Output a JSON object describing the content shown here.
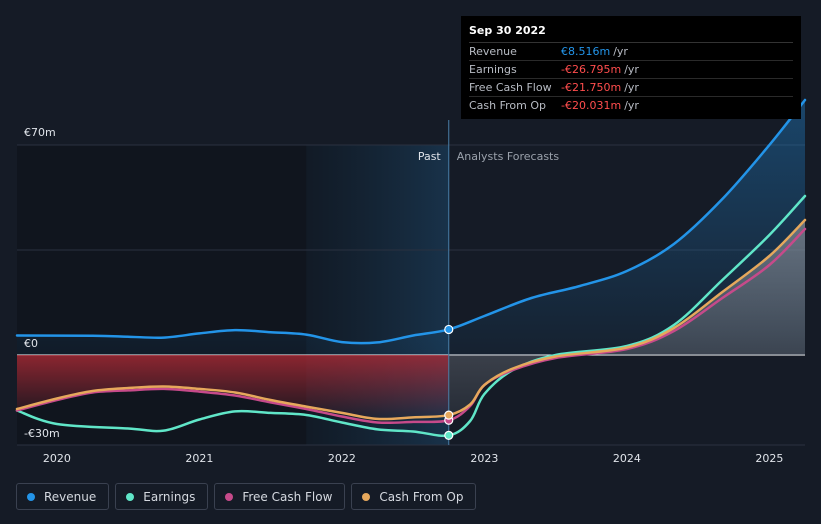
{
  "chart_data": {
    "type": "line",
    "currency_unit": "€m",
    "y_axis": {
      "ylim": [
        -30,
        70
      ],
      "tick_labels": [
        {
          "value": 70,
          "label": "€70m"
        },
        {
          "value": 0,
          "label": "€0"
        },
        {
          "value": -30,
          "label": "-€30m"
        }
      ]
    },
    "x_axis": {
      "range": [
        2019.72,
        2025.25
      ],
      "tick_labels": [
        {
          "value": 2020,
          "label": "2020"
        },
        {
          "value": 2021,
          "label": "2021"
        },
        {
          "value": 2022,
          "label": "2022"
        },
        {
          "value": 2023,
          "label": "2023"
        },
        {
          "value": 2024,
          "label": "2024"
        },
        {
          "value": 2025,
          "label": "2025"
        }
      ]
    },
    "past_label": "Past",
    "forecast_label": "Analysts Forecasts",
    "divider_x": 2022.75,
    "highlight_start_x": 2021.75,
    "gridlines": true,
    "legend_position": "bottom-left",
    "series": [
      {
        "name": "Revenue",
        "color": "#2394e8",
        "points": [
          [
            2019.72,
            6.5
          ],
          [
            2020.25,
            6.4
          ],
          [
            2020.5,
            6.1
          ],
          [
            2020.75,
            5.8
          ],
          [
            2021.0,
            7.2
          ],
          [
            2021.25,
            8.3
          ],
          [
            2021.5,
            7.6
          ],
          [
            2021.75,
            6.8
          ],
          [
            2022.0,
            4.3
          ],
          [
            2022.25,
            4.2
          ],
          [
            2022.5,
            6.5
          ],
          [
            2022.75,
            8.516
          ],
          [
            2023.0,
            13
          ],
          [
            2023.33,
            19
          ],
          [
            2023.67,
            23
          ],
          [
            2024.0,
            28
          ],
          [
            2024.33,
            37
          ],
          [
            2024.67,
            52
          ],
          [
            2025.0,
            70
          ],
          [
            2025.25,
            85
          ]
        ]
      },
      {
        "name": "Earnings",
        "color": "#60e6c8",
        "points": [
          [
            2019.72,
            -18.5
          ],
          [
            2020.0,
            -23
          ],
          [
            2020.5,
            -24.5
          ],
          [
            2020.75,
            -25.2
          ],
          [
            2021.0,
            -21.5
          ],
          [
            2021.25,
            -18.8
          ],
          [
            2021.5,
            -19.3
          ],
          [
            2021.75,
            -20
          ],
          [
            2022.0,
            -22.5
          ],
          [
            2022.25,
            -24.8
          ],
          [
            2022.5,
            -25.5
          ],
          [
            2022.75,
            -26.795
          ],
          [
            2022.9,
            -22
          ],
          [
            2023.0,
            -13
          ],
          [
            2023.2,
            -5
          ],
          [
            2023.5,
            0
          ],
          [
            2024.0,
            3
          ],
          [
            2024.33,
            10
          ],
          [
            2024.67,
            25
          ],
          [
            2025.0,
            40
          ],
          [
            2025.25,
            53
          ]
        ]
      },
      {
        "name": "Free Cash Flow",
        "color": "#c64a8a",
        "points": [
          [
            2019.72,
            -18.5
          ],
          [
            2020.0,
            -15
          ],
          [
            2020.25,
            -12.5
          ],
          [
            2020.5,
            -11.8
          ],
          [
            2020.75,
            -11.3
          ],
          [
            2021.0,
            -12.2
          ],
          [
            2021.25,
            -13.5
          ],
          [
            2021.5,
            -15.8
          ],
          [
            2021.75,
            -18
          ],
          [
            2022.0,
            -20.5
          ],
          [
            2022.25,
            -22.5
          ],
          [
            2022.5,
            -22.3
          ],
          [
            2022.75,
            -21.75
          ],
          [
            2022.9,
            -17
          ],
          [
            2023.0,
            -10
          ],
          [
            2023.2,
            -5
          ],
          [
            2023.5,
            -1
          ],
          [
            2024.0,
            2
          ],
          [
            2024.33,
            8
          ],
          [
            2024.67,
            19
          ],
          [
            2025.0,
            30
          ],
          [
            2025.25,
            42
          ]
        ]
      },
      {
        "name": "Cash From Op",
        "color": "#e6a85c",
        "points": [
          [
            2019.72,
            -18
          ],
          [
            2020.0,
            -14.5
          ],
          [
            2020.25,
            -12
          ],
          [
            2020.5,
            -11
          ],
          [
            2020.75,
            -10.5
          ],
          [
            2021.0,
            -11.3
          ],
          [
            2021.25,
            -12.5
          ],
          [
            2021.5,
            -15
          ],
          [
            2021.75,
            -17.2
          ],
          [
            2022.0,
            -19.3
          ],
          [
            2022.25,
            -21.3
          ],
          [
            2022.5,
            -20.8
          ],
          [
            2022.75,
            -20.031
          ],
          [
            2022.9,
            -16.5
          ],
          [
            2023.0,
            -10
          ],
          [
            2023.2,
            -4.5
          ],
          [
            2023.5,
            -0.5
          ],
          [
            2024.0,
            2.5
          ],
          [
            2024.33,
            9
          ],
          [
            2024.67,
            21
          ],
          [
            2025.0,
            33
          ],
          [
            2025.25,
            45
          ]
        ]
      }
    ]
  },
  "tooltip": {
    "date": "Sep 30 2022",
    "rows": [
      {
        "label": "Revenue",
        "value": "€8.516m",
        "unit": "/yr",
        "color": "#2394e8"
      },
      {
        "label": "Earnings",
        "value": "-€26.795m",
        "unit": "/yr",
        "color": "#ff4d4d"
      },
      {
        "label": "Free Cash Flow",
        "value": "-€21.750m",
        "unit": "/yr",
        "color": "#ff4d4d"
      },
      {
        "label": "Cash From Op",
        "value": "-€20.031m",
        "unit": "/yr",
        "color": "#ff4d4d"
      }
    ]
  },
  "legend": [
    {
      "label": "Revenue",
      "color": "#2394e8"
    },
    {
      "label": "Earnings",
      "color": "#60e6c8"
    },
    {
      "label": "Free Cash Flow",
      "color": "#c64a8a"
    },
    {
      "label": "Cash From Op",
      "color": "#e6a85c"
    }
  ]
}
